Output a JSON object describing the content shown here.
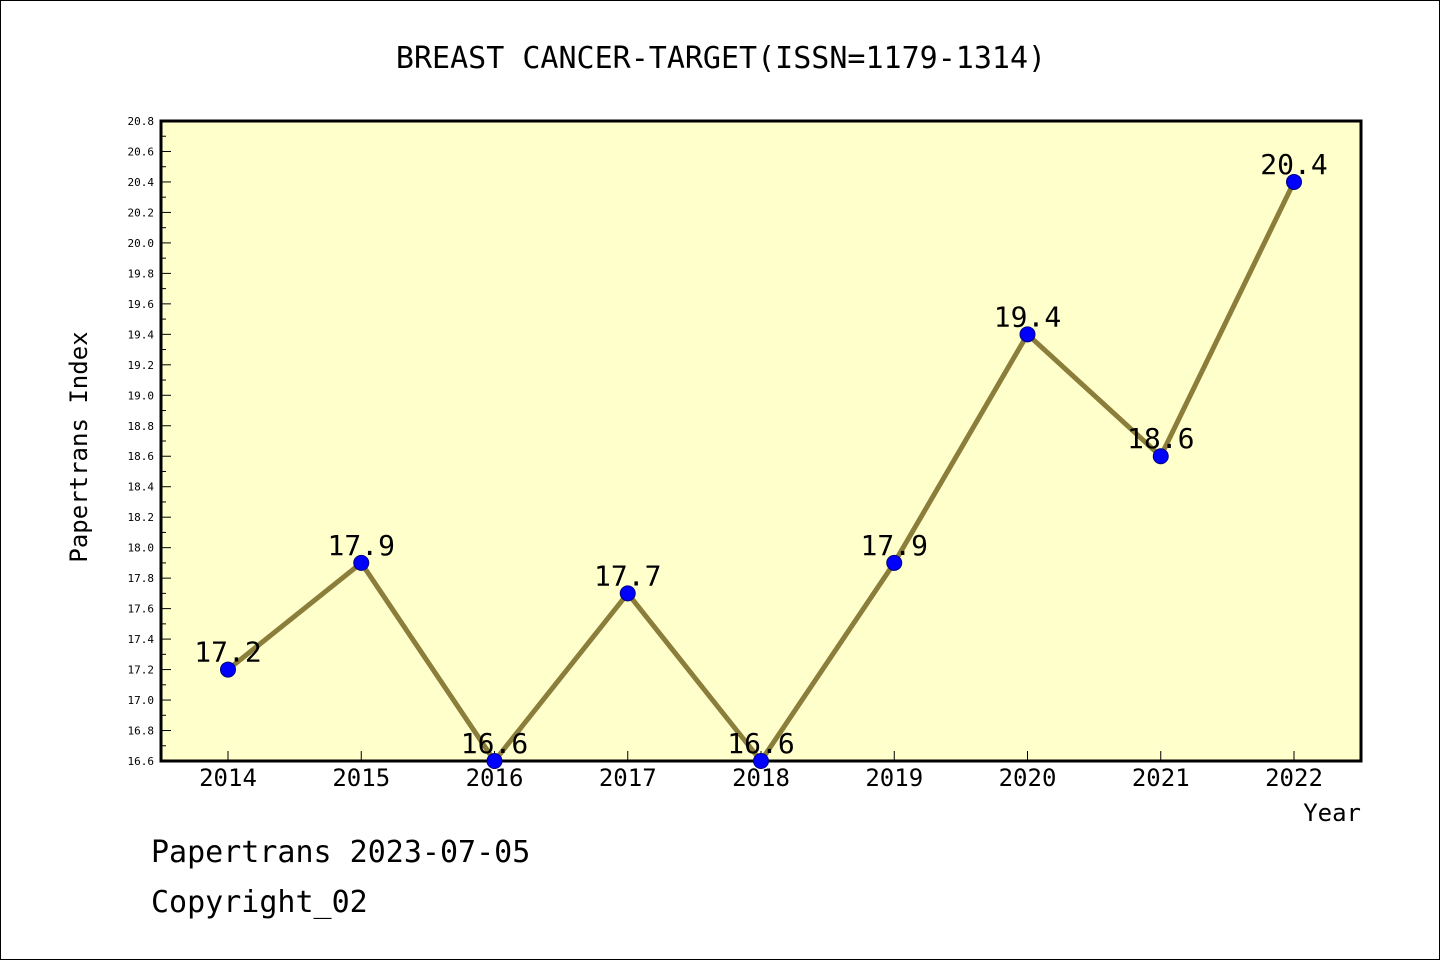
{
  "chart_data": {
    "type": "line",
    "title": "BREAST CANCER-TARGET(ISSN=1179-1314)",
    "xlabel": "Year",
    "ylabel": "Papertrans Index",
    "categories": [
      "2014",
      "2015",
      "2016",
      "2017",
      "2018",
      "2019",
      "2020",
      "2021",
      "2022"
    ],
    "series": [
      {
        "values": [
          17.2,
          17.9,
          16.6,
          17.7,
          16.6,
          17.9,
          19.4,
          18.6,
          20.4
        ],
        "data_labels": [
          "17.2",
          "17.9",
          "16.6",
          "17.7",
          "16.6",
          "17.9",
          "19.4",
          "18.6",
          "20.4"
        ]
      }
    ],
    "ylim": [
      16.6,
      20.8
    ],
    "yticks": [
      "16.6",
      "16.8",
      "17.0",
      "17.2",
      "17.4",
      "17.6",
      "17.8",
      "18.0",
      "18.2",
      "18.4",
      "18.6",
      "18.8",
      "19.0",
      "19.2",
      "19.4",
      "19.6",
      "19.8",
      "20.0",
      "20.2",
      "20.4",
      "20.6",
      "20.8"
    ],
    "grid": false,
    "legend": "none",
    "colors": {
      "plot_background": "#ffffcc",
      "line": "#8b7d3a",
      "marker_fill": "#0000ff",
      "marker_edge": "#000080"
    }
  },
  "footer": {
    "line1": "Papertrans 2023-07-05",
    "line2": "Copyright_02"
  }
}
